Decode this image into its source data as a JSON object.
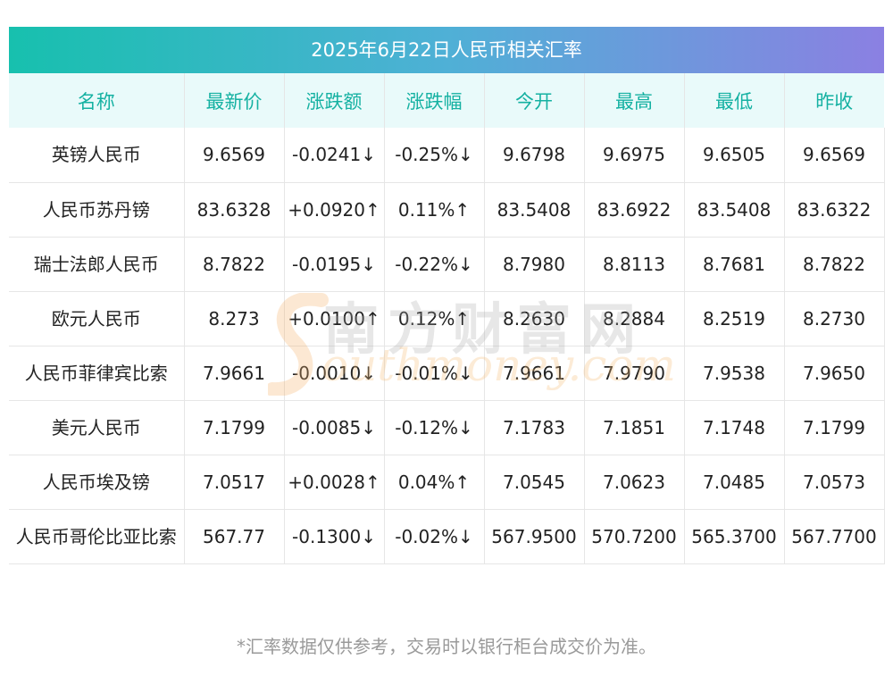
{
  "title": "2025年6月22日人民币相关汇率",
  "headers": [
    "名称",
    "最新价",
    "涨跌额",
    "涨跌幅",
    "今开",
    "最高",
    "最低",
    "昨收"
  ],
  "rows": [
    {
      "name": "英镑人民币",
      "latest": "9.6569",
      "change": "-0.0241↓",
      "pct": "-0.25%↓",
      "open": "9.6798",
      "high": "9.6975",
      "low": "9.6505",
      "prev": "9.6569",
      "dir": "down"
    },
    {
      "name": "人民币苏丹镑",
      "latest": "83.6328",
      "change": "+0.0920↑",
      "pct": "0.11%↑",
      "open": "83.5408",
      "high": "83.6922",
      "low": "83.5408",
      "prev": "83.6322",
      "dir": "up"
    },
    {
      "name": "瑞士法郎人民币",
      "latest": "8.7822",
      "change": "-0.0195↓",
      "pct": "-0.22%↓",
      "open": "8.7980",
      "high": "8.8113",
      "low": "8.7681",
      "prev": "8.7822",
      "dir": "down"
    },
    {
      "name": "欧元人民币",
      "latest": "8.273",
      "change": "+0.0100↑",
      "pct": "0.12%↑",
      "open": "8.2630",
      "high": "8.2884",
      "low": "8.2519",
      "prev": "8.2730",
      "dir": "up"
    },
    {
      "name": "人民币菲律宾比索",
      "latest": "7.9661",
      "change": "-0.0010↓",
      "pct": "-0.01%↓",
      "open": "7.9661",
      "high": "7.9790",
      "low": "7.9538",
      "prev": "7.9650",
      "dir": "down"
    },
    {
      "name": "美元人民币",
      "latest": "7.1799",
      "change": "-0.0085↓",
      "pct": "-0.12%↓",
      "open": "7.1783",
      "high": "7.1851",
      "low": "7.1748",
      "prev": "7.1799",
      "dir": "down"
    },
    {
      "name": "人民币埃及镑",
      "latest": "7.0517",
      "change": "+0.0028↑",
      "pct": "0.04%↑",
      "open": "7.0545",
      "high": "7.0623",
      "low": "7.0485",
      "prev": "7.0573",
      "dir": "up"
    },
    {
      "name": "人民币哥伦比亚比索",
      "latest": "567.77",
      "change": "-0.1300↓",
      "pct": "-0.02%↓",
      "open": "567.9500",
      "high": "570.7200",
      "low": "565.3700",
      "prev": "567.7700",
      "dir": "down"
    }
  ],
  "watermark": {
    "cn": "南方财富网",
    "en": "outhmoney.com"
  },
  "footer": "*汇率数据仅供参考，交易时以银行柜台成交价为准。",
  "colors": {
    "accent": "#15b1a2",
    "up": "#e8262a",
    "down": "#1e8a2a",
    "header_bg": "#e9fafa"
  }
}
